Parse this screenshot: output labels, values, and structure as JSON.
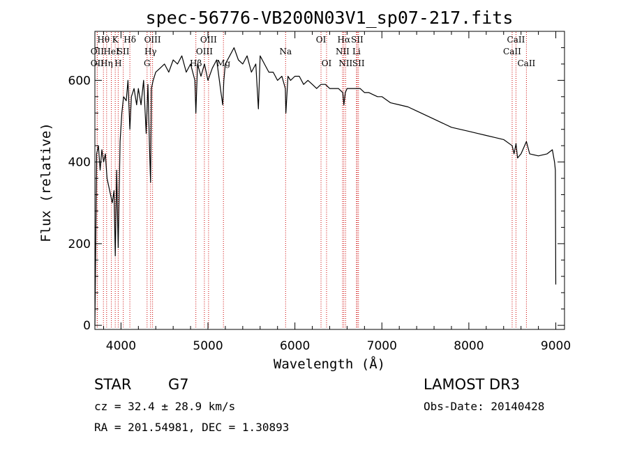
{
  "chart_data": {
    "type": "line",
    "title": "spec-56776-VB200N03V1_sp07-217.fits",
    "xlabel": "Wavelength (Å)",
    "ylabel": "Flux (relative)",
    "xlim": [
      3700,
      9100
    ],
    "ylim": [
      -10,
      720
    ],
    "xticks": [
      4000,
      5000,
      6000,
      7000,
      8000,
      9000
    ],
    "yticks": [
      0,
      200,
      400,
      600
    ],
    "xminor_step": 200,
    "yminor_step": 40,
    "series": [
      {
        "name": "spectrum",
        "x": [
          3700,
          3720,
          3740,
          3760,
          3780,
          3800,
          3820,
          3840,
          3860,
          3880,
          3900,
          3920,
          3934,
          3950,
          3968,
          3990,
          4010,
          4030,
          4060,
          4080,
          4102,
          4120,
          4150,
          4180,
          4200,
          4230,
          4260,
          4290,
          4310,
          4330,
          4340,
          4350,
          4370,
          4400,
          4450,
          4500,
          4550,
          4600,
          4650,
          4700,
          4750,
          4800,
          4850,
          4861,
          4880,
          4920,
          4960,
          5000,
          5050,
          5100,
          5150,
          5170,
          5183,
          5200,
          5250,
          5300,
          5350,
          5400,
          5450,
          5500,
          5550,
          5580,
          5600,
          5650,
          5700,
          5750,
          5800,
          5850,
          5890,
          5896,
          5920,
          5950,
          6000,
          6050,
          6100,
          6150,
          6200,
          6250,
          6300,
          6350,
          6400,
          6450,
          6500,
          6550,
          6563,
          6580,
          6600,
          6650,
          6700,
          6750,
          6800,
          6850,
          6900,
          6950,
          7000,
          7100,
          7200,
          7300,
          7400,
          7500,
          7600,
          7700,
          7800,
          7900,
          8000,
          8100,
          8200,
          8300,
          8400,
          8498,
          8520,
          8542,
          8560,
          8600,
          8662,
          8700,
          8800,
          8900,
          8960,
          8985,
          8995,
          9000
        ],
        "y": [
          0,
          420,
          440,
          380,
          430,
          400,
          420,
          360,
          340,
          320,
          300,
          330,
          170,
          380,
          190,
          450,
          520,
          560,
          550,
          600,
          480,
          560,
          580,
          540,
          580,
          540,
          600,
          470,
          590,
          420,
          350,
          580,
          600,
          620,
          630,
          640,
          620,
          650,
          640,
          660,
          620,
          640,
          600,
          520,
          640,
          610,
          640,
          600,
          630,
          650,
          570,
          540,
          600,
          640,
          660,
          680,
          650,
          640,
          660,
          620,
          640,
          530,
          660,
          640,
          620,
          620,
          600,
          610,
          580,
          520,
          610,
          600,
          610,
          610,
          590,
          600,
          590,
          580,
          590,
          590,
          580,
          580,
          580,
          570,
          540,
          570,
          580,
          580,
          580,
          580,
          570,
          570,
          565,
          560,
          560,
          545,
          540,
          535,
          525,
          515,
          505,
          495,
          485,
          480,
          475,
          470,
          465,
          460,
          455,
          440,
          420,
          445,
          410,
          420,
          450,
          420,
          415,
          420,
          430,
          400,
          380,
          100
        ]
      }
    ],
    "line_markers": [
      {
        "wl": 3727,
        "label": "OII",
        "row": 2
      },
      {
        "wl": 3727,
        "label": "OII",
        "row": 3
      },
      {
        "wl": 3798,
        "label": "Hθ",
        "row": 1
      },
      {
        "wl": 3835,
        "label": "Hη",
        "row": 3
      },
      {
        "wl": 3889,
        "label": "HeI",
        "row": 2
      },
      {
        "wl": 3934,
        "label": "K",
        "row": 1
      },
      {
        "wl": 3968,
        "label": "H",
        "row": 3
      },
      {
        "wl": 4026,
        "label": "SII",
        "row": 2
      },
      {
        "wl": 4102,
        "label": "Hδ",
        "row": 1
      },
      {
        "wl": 4300,
        "label": "G",
        "row": 3
      },
      {
        "wl": 4340,
        "label": "Hγ",
        "row": 2
      },
      {
        "wl": 4363,
        "label": "OIII",
        "row": 1
      },
      {
        "wl": 4861,
        "label": "Hβ",
        "row": 3
      },
      {
        "wl": 4959,
        "label": "OIII",
        "row": 2
      },
      {
        "wl": 5007,
        "label": "OIII",
        "row": 1
      },
      {
        "wl": 5178,
        "label": "Mg",
        "row": 3
      },
      {
        "wl": 5893,
        "label": "Na",
        "row": 2
      },
      {
        "wl": 6300,
        "label": "OI",
        "row": 1
      },
      {
        "wl": 6364,
        "label": "OI",
        "row": 3
      },
      {
        "wl": 6548,
        "label": "NII",
        "row": 2
      },
      {
        "wl": 6563,
        "label": "Hα",
        "row": 1
      },
      {
        "wl": 6583,
        "label": "NII",
        "row": 3
      },
      {
        "wl": 6708,
        "label": "Li",
        "row": 2
      },
      {
        "wl": 6716,
        "label": "SII",
        "row": 1
      },
      {
        "wl": 6731,
        "label": "SII",
        "row": 3
      },
      {
        "wl": 8498,
        "label": "CaII",
        "row": 2
      },
      {
        "wl": 8542,
        "label": "CaII",
        "row": 1
      },
      {
        "wl": 8662,
        "label": "CaII",
        "row": 3
      }
    ],
    "colors": {
      "spectrum": "#000000",
      "markers": "#cc0000",
      "axes": "#000000"
    }
  },
  "info": {
    "class": "STAR",
    "subclass": "G7",
    "survey": "LAMOST DR3",
    "cz": "cz = 32.4 ± 28.9 km/s",
    "obs_date": "Obs-Date: 20140428",
    "coords": "RA = 201.54981, DEC =   1.30893"
  }
}
